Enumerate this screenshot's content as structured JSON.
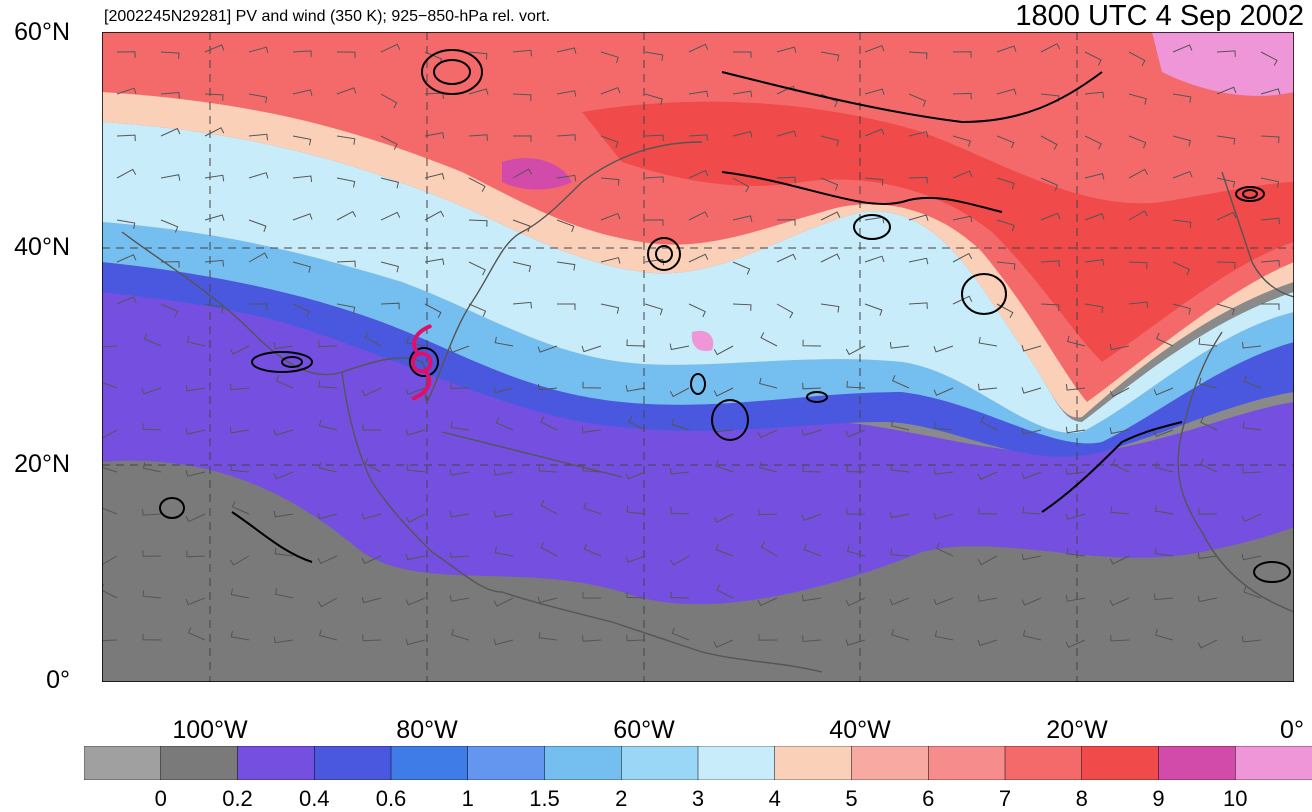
{
  "header": {
    "left": "[2002245N29281] PV and wind (350 K); 925−850-hPa rel. vort.",
    "right": "1800 UTC 4 Sep 2002"
  },
  "map": {
    "lat_labels": [
      "60°N",
      "40°N",
      "20°N",
      "0°"
    ],
    "lon_labels": [
      "100°W",
      "80°W",
      "60°W",
      "40°W",
      "20°W",
      "0°"
    ],
    "lat_range": [
      0,
      60
    ],
    "lon_range": [
      -110,
      0
    ],
    "storm_symbol": {
      "name": "tropical-cyclone-icon",
      "lat": 29.5,
      "lon": -80.5,
      "color": "#e0106a"
    },
    "vorticity_contours_color": "#000000",
    "map_outline_color": "#555555",
    "background_color": "#8a8a8a"
  },
  "colorbar": {
    "labels": [
      "0",
      "0.2",
      "0.4",
      "0.6",
      "1",
      "1.5",
      "2",
      "3",
      "4",
      "5",
      "6",
      "7",
      "8",
      "9",
      "10"
    ],
    "colors": [
      "#a0a0a0",
      "#7a7a7a",
      "#7550e0",
      "#4a58e0",
      "#3f7ce8",
      "#6496f0",
      "#74bef0",
      "#9ad6f6",
      "#c8ecfa",
      "#fbd0b8",
      "#f8aaa2",
      "#f68c8c",
      "#f46a6a",
      "#f04a4a",
      "#d24aaa",
      "#ee96d8"
    ]
  }
}
